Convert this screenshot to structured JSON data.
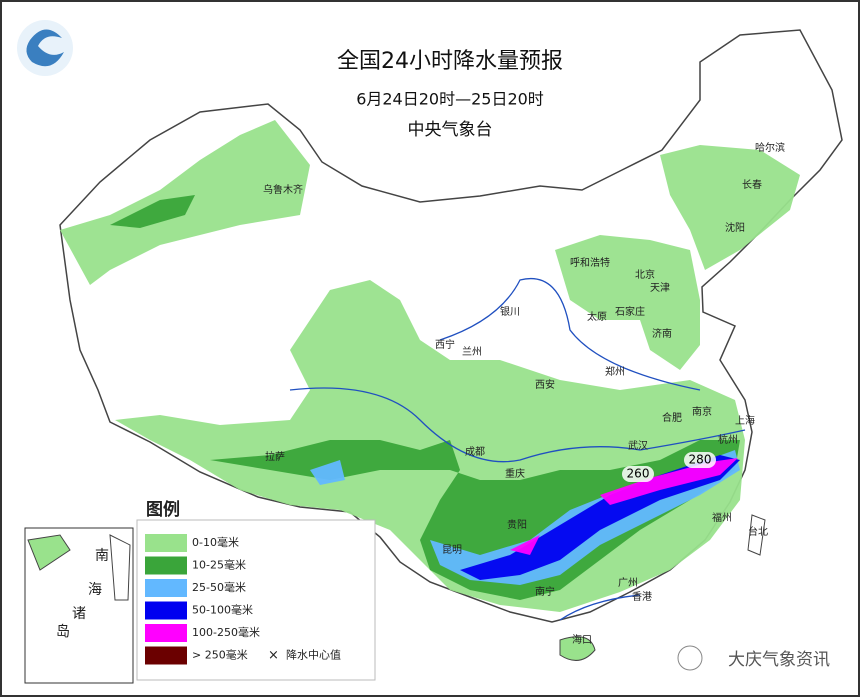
{
  "header": {
    "title": "全国24小时降水量预报",
    "subtitle": "6月24日20时—25日20时",
    "agency": "中央气象台"
  },
  "legend": {
    "title": "图例",
    "items": [
      {
        "label": "0-10毫米",
        "color": "#99e28c"
      },
      {
        "label": "10-25毫米",
        "color": "#3aa53a"
      },
      {
        "label": "25-50毫米",
        "color": "#62b8ff"
      },
      {
        "label": "50-100毫米",
        "color": "#0000f0"
      },
      {
        "label": "100-250毫米",
        "color": "#ff00ff"
      },
      {
        "label": "> 250毫米",
        "color": "#6b0000"
      }
    ],
    "center_symbol": "×",
    "center_label": "降水中心值"
  },
  "map": {
    "cities": [
      "乌鲁木齐",
      "哈尔滨",
      "长春",
      "沈阳",
      "呼和浩特",
      "北京",
      "天津",
      "石家庄",
      "太原",
      "济南",
      "银川",
      "西宁",
      "兰州",
      "郑州",
      "西安",
      "合肥",
      "南京",
      "上海",
      "武汉",
      "杭州",
      "成都",
      "拉萨",
      "重庆",
      "福州",
      "台北",
      "贵阳",
      "昆明",
      "南宁",
      "广州",
      "香港",
      "海口"
    ],
    "rain_centers": [
      "260",
      "280"
    ],
    "inset_label": [
      "南",
      "海",
      "诸",
      "岛"
    ]
  },
  "watermark": "大庆气象资讯"
}
